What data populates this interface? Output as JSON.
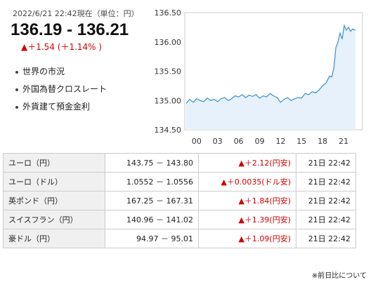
{
  "header": {
    "timestamp": "2022/6/21 22:42現在（単位：円）",
    "rate": "136.19 - 136.21",
    "change": "▲＋1.54 (＋1.14% )",
    "change_color": "#d00000"
  },
  "links": [
    {
      "label": "世界の市況"
    },
    {
      "label": "外国為替クロスレート"
    },
    {
      "label": "外貨建て預金金利"
    }
  ],
  "chart_data": {
    "type": "area",
    "y_ticks": [
      "136.50",
      "136.00",
      "135.50",
      "135.00",
      "134.50"
    ],
    "ylim": [
      134.5,
      136.5
    ],
    "x_ticks": [
      "00",
      "03",
      "06",
      "09",
      "12",
      "15",
      "18",
      "21"
    ],
    "xlim": [
      -1.7,
      23.7
    ],
    "x": [
      -1.5,
      -1.0,
      -0.5,
      0.0,
      0.5,
      1.0,
      1.5,
      2.0,
      2.5,
      3.0,
      3.5,
      4.0,
      4.5,
      5.0,
      5.5,
      6.0,
      6.5,
      7.0,
      7.5,
      8.0,
      8.5,
      9.0,
      9.5,
      10.0,
      10.5,
      11.0,
      11.5,
      12.0,
      12.5,
      13.0,
      13.5,
      14.0,
      14.5,
      15.0,
      15.5,
      16.0,
      16.5,
      17.0,
      17.5,
      18.0,
      18.5,
      19.0,
      19.3,
      19.6,
      19.9,
      20.2,
      20.5,
      20.8,
      21.1,
      21.4,
      21.7,
      22.0,
      22.3,
      22.7
    ],
    "values": [
      134.95,
      135.02,
      134.97,
      135.03,
      135.0,
      134.98,
      135.04,
      135.0,
      135.02,
      134.98,
      135.03,
      135.05,
      135.0,
      135.03,
      135.08,
      135.06,
      135.1,
      135.05,
      135.09,
      135.07,
      135.1,
      135.04,
      135.08,
      135.06,
      135.12,
      135.08,
      135.05,
      134.97,
      135.02,
      135.05,
      135.0,
      135.03,
      135.05,
      135.04,
      135.12,
      135.1,
      135.15,
      135.13,
      135.18,
      135.25,
      135.3,
      135.42,
      135.4,
      135.55,
      135.9,
      136.0,
      136.15,
      136.05,
      136.28,
      136.2,
      136.25,
      136.18,
      136.22,
      136.2
    ],
    "line_color": "#3a8fd0",
    "fill_color": "#e6f1fb",
    "grid": false
  },
  "table": {
    "rows": [
      {
        "name": "ユーロ（円）",
        "range": "143.75 － 143.80",
        "diff": "▲＋2.12",
        "unit": "(円安)",
        "time": "21日 22:42"
      },
      {
        "name": "ユーロ（ドル）",
        "range": "1.0552 － 1.0556",
        "diff": "▲＋0.0035",
        "unit": "(ドル安)",
        "time": "21日 22:42"
      },
      {
        "name": "英ポンド（円）",
        "range": "167.25 － 167.31",
        "diff": "▲＋1.84",
        "unit": "(円安)",
        "time": "21日 22:42"
      },
      {
        "name": "スイスフラン（円）",
        "range": "140.96 － 141.02",
        "diff": "▲＋1.39",
        "unit": "(円安)",
        "time": "21日 22:42"
      },
      {
        "name": "豪ドル（円）",
        "range": "94.97 － 95.01",
        "diff": "▲＋1.09",
        "unit": "(円安)",
        "time": "21日 22:42"
      }
    ]
  },
  "footer": {
    "note": "※前日比について"
  }
}
